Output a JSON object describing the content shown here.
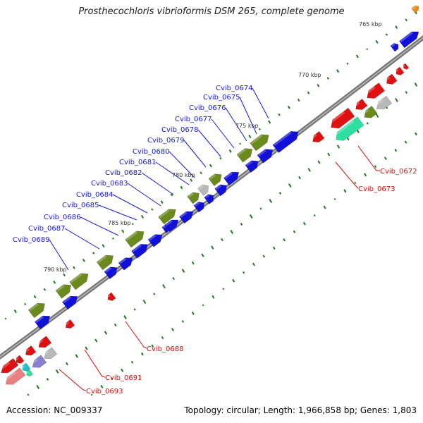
{
  "title": "Prosthecochloris vibrioformis DSM 265, complete genome",
  "footer": {
    "accession": "Accession: NC_009337",
    "info": "Topology: circular; Length: 1,966,858 bp; Genes: 1,803"
  },
  "ruler": [
    "765 kbp",
    "770 kbp",
    "775 kbp",
    "780 kbp",
    "785 kbp",
    "790 kbp"
  ],
  "forward_gene_labels": [
    "Cvib_0674",
    "Cvib_0675",
    "Cvib_0676",
    "Cvib_0677",
    "Cvib_0678",
    "Cvib_0679",
    "Cvib_0680",
    "Cvib_0681",
    "Cvib_0682",
    "Cvib_0683",
    "Cvib_0684",
    "Cvib_0685",
    "Cvib_0686",
    "Cvib_0687",
    "Cvib_0689"
  ],
  "reverse_gene_labels": [
    "Cvib_0672",
    "Cvib_0673",
    "Cvib_0688",
    "Cvib_0691",
    "Cvib_0693"
  ],
  "colors": {
    "blue": "#1010d8",
    "olive": "#6b8a1e",
    "red": "#e01010",
    "gray": "#b8b8b8",
    "teal": "#2ee0a0",
    "orange": "#f08a10",
    "purple": "#8a80d0",
    "pink": "#e88080",
    "cyan": "#20c0c0",
    "backbone": "#777777",
    "tick": "#1a7a1a",
    "blue_label": "#1a1ad0",
    "red_label": "#d01010"
  }
}
